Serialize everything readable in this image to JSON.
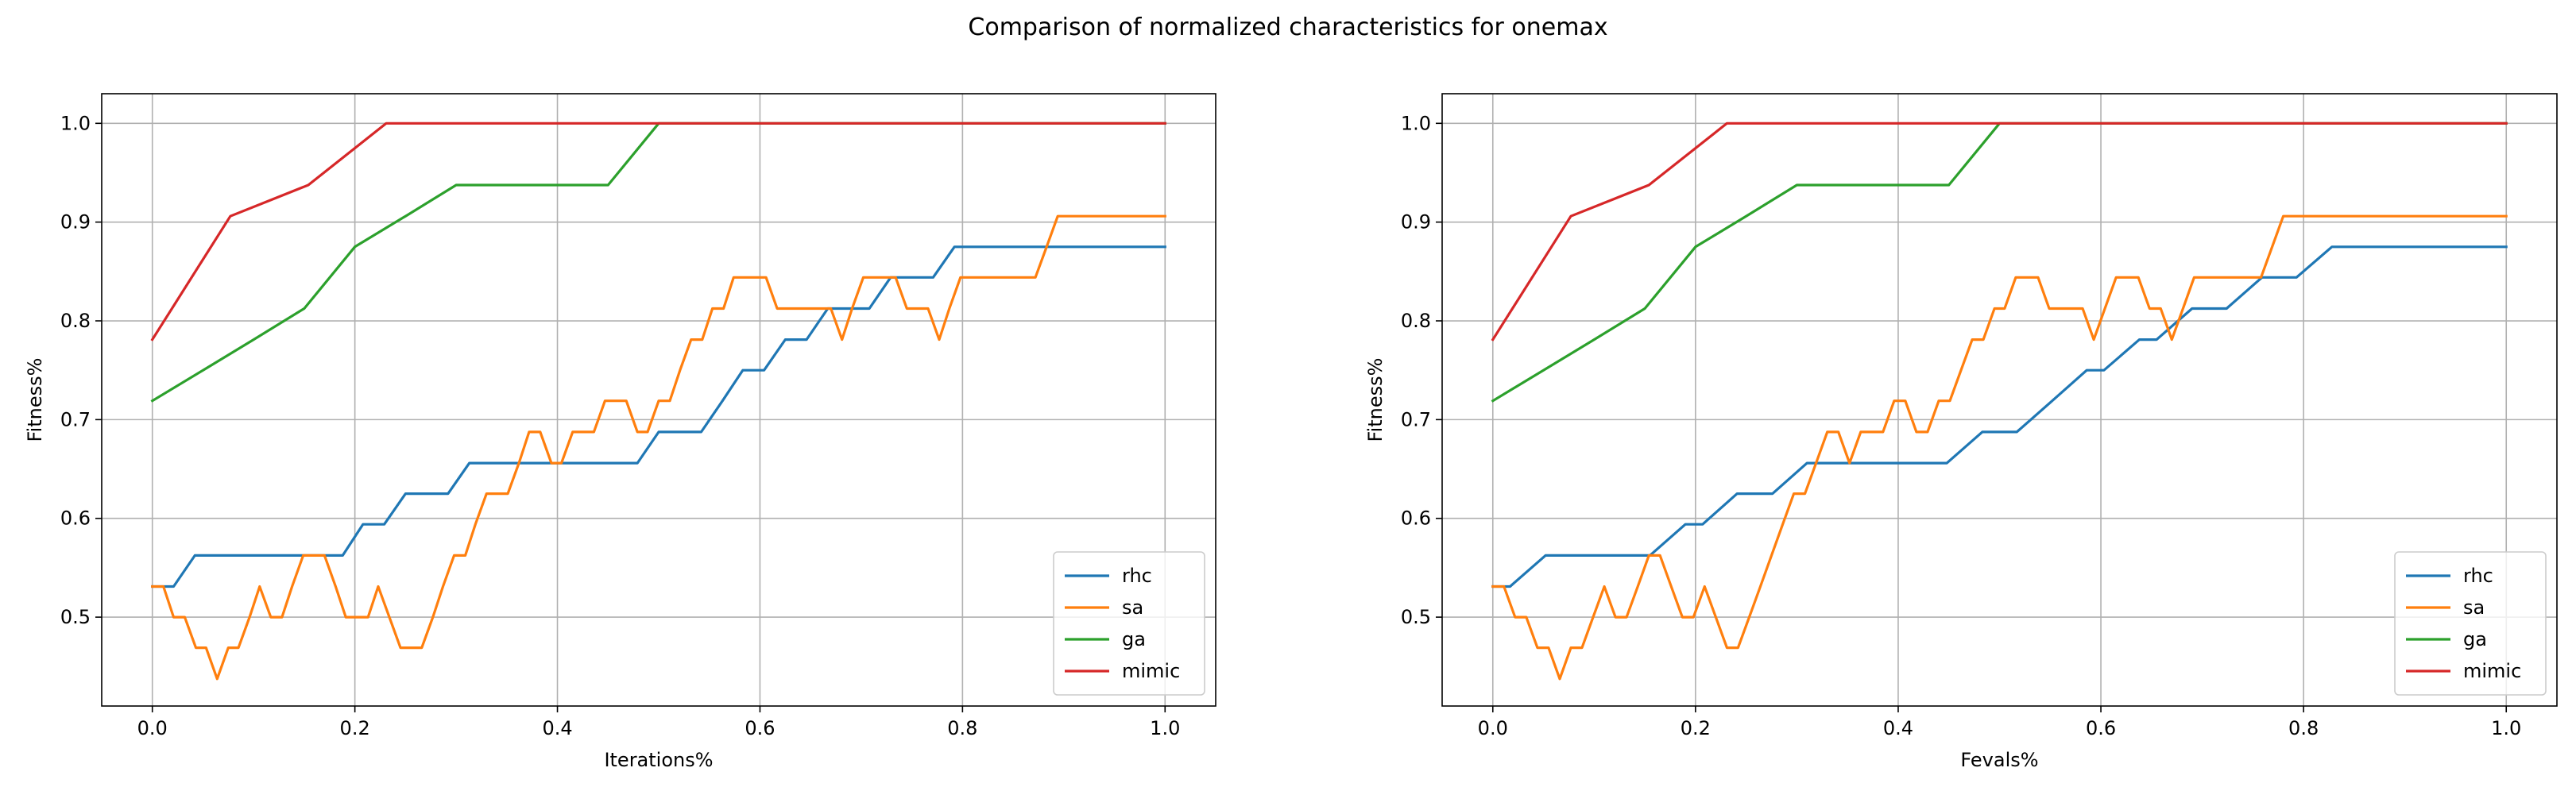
{
  "figure": {
    "suptitle": "Comparison of normalized characteristics for onemax"
  },
  "chart_data": [
    {
      "type": "line",
      "title": "",
      "xlabel": "Iterations%",
      "ylabel": "Fitness%",
      "xlim": [
        -0.05,
        1.05
      ],
      "ylim": [
        0.41,
        1.03
      ],
      "xticks": [
        0.0,
        0.2,
        0.4,
        0.6,
        0.8,
        1.0
      ],
      "xtick_labels": [
        "0.0",
        "0.2",
        "0.4",
        "0.6",
        "0.8",
        "1.0"
      ],
      "yticks": [
        0.5,
        0.6,
        0.7,
        0.8,
        0.9,
        1.0
      ],
      "ytick_labels": [
        "0.5",
        "0.6",
        "0.7",
        "0.8",
        "0.9",
        "1.0"
      ],
      "grid": true,
      "legend": "lower-right",
      "series": [
        {
          "name": "rhc",
          "color": "#1f77b4",
          "x": [
            0.0,
            0.021,
            0.042,
            0.063,
            0.083,
            0.104,
            0.125,
            0.146,
            0.167,
            0.188,
            0.208,
            0.229,
            0.25,
            0.271,
            0.292,
            0.313,
            0.333,
            0.354,
            0.375,
            0.396,
            0.417,
            0.438,
            0.458,
            0.479,
            0.5,
            0.521,
            0.542,
            0.563,
            0.583,
            0.604,
            0.625,
            0.646,
            0.667,
            0.688,
            0.708,
            0.729,
            0.75,
            0.771,
            0.792,
            0.813,
            0.833,
            0.854,
            0.875,
            0.896,
            0.917,
            0.938,
            0.958,
            0.979,
            1.0
          ],
          "y": [
            0.531,
            0.531,
            0.5625,
            0.5625,
            0.5625,
            0.5625,
            0.5625,
            0.5625,
            0.5625,
            0.5625,
            0.594,
            0.594,
            0.625,
            0.625,
            0.625,
            0.656,
            0.656,
            0.656,
            0.656,
            0.656,
            0.656,
            0.656,
            0.656,
            0.656,
            0.6875,
            0.6875,
            0.6875,
            0.719,
            0.75,
            0.75,
            0.781,
            0.781,
            0.8125,
            0.8125,
            0.8125,
            0.844,
            0.844,
            0.844,
            0.875,
            0.875,
            0.875,
            0.875,
            0.875,
            0.875,
            0.875,
            0.875,
            0.875,
            0.875,
            0.875
          ]
        },
        {
          "name": "sa",
          "color": "#ff7f0e",
          "x": [
            0.0,
            0.011,
            0.021,
            0.032,
            0.043,
            0.053,
            0.064,
            0.075,
            0.085,
            0.096,
            0.106,
            0.117,
            0.128,
            0.138,
            0.149,
            0.16,
            0.17,
            0.181,
            0.191,
            0.202,
            0.213,
            0.223,
            0.234,
            0.245,
            0.255,
            0.266,
            0.277,
            0.287,
            0.298,
            0.309,
            0.319,
            0.33,
            0.34,
            0.351,
            0.362,
            0.372,
            0.383,
            0.394,
            0.404,
            0.415,
            0.426,
            0.436,
            0.447,
            0.457,
            0.468,
            0.479,
            0.489,
            0.5,
            0.511,
            0.521,
            0.532,
            0.543,
            0.553,
            0.564,
            0.574,
            0.585,
            0.596,
            0.606,
            0.617,
            0.628,
            0.638,
            0.649,
            0.66,
            0.67,
            0.681,
            0.691,
            0.702,
            0.713,
            0.723,
            0.734,
            0.745,
            0.755,
            0.766,
            0.777,
            0.787,
            0.798,
            0.809,
            0.819,
            0.83,
            0.84,
            0.851,
            0.862,
            0.872,
            0.883,
            0.894,
            0.904,
            0.915,
            0.926,
            0.936,
            0.947,
            0.957,
            0.968,
            0.979,
            0.989,
            1.0
          ],
          "y": [
            0.531,
            0.531,
            0.5,
            0.5,
            0.469,
            0.469,
            0.4375,
            0.469,
            0.469,
            0.5,
            0.531,
            0.5,
            0.5,
            0.531,
            0.5625,
            0.5625,
            0.5625,
            0.531,
            0.5,
            0.5,
            0.5,
            0.531,
            0.5,
            0.469,
            0.469,
            0.469,
            0.5,
            0.531,
            0.5625,
            0.5625,
            0.594,
            0.625,
            0.625,
            0.625,
            0.656,
            0.6875,
            0.6875,
            0.656,
            0.656,
            0.6875,
            0.6875,
            0.6875,
            0.719,
            0.719,
            0.719,
            0.6875,
            0.6875,
            0.719,
            0.719,
            0.75,
            0.781,
            0.781,
            0.8125,
            0.8125,
            0.844,
            0.844,
            0.844,
            0.844,
            0.8125,
            0.8125,
            0.8125,
            0.8125,
            0.8125,
            0.8125,
            0.781,
            0.8125,
            0.844,
            0.844,
            0.844,
            0.844,
            0.8125,
            0.8125,
            0.8125,
            0.781,
            0.8125,
            0.844,
            0.844,
            0.844,
            0.844,
            0.844,
            0.844,
            0.844,
            0.844,
            0.875,
            0.906,
            0.906,
            0.906,
            0.906,
            0.906,
            0.906,
            0.906,
            0.906,
            0.906,
            0.906,
            0.906
          ]
        },
        {
          "name": "ga",
          "color": "#2ca02c",
          "x": [
            0.0,
            0.05,
            0.1,
            0.15,
            0.2,
            0.25,
            0.3,
            0.35,
            0.4,
            0.45,
            0.5,
            0.55,
            0.6,
            0.65,
            0.7,
            0.75,
            0.8,
            0.85,
            0.9,
            0.95,
            1.0
          ],
          "y": [
            0.719,
            0.75,
            0.781,
            0.8125,
            0.875,
            0.906,
            0.9375,
            0.9375,
            0.9375,
            0.9375,
            1.0,
            1.0,
            1.0,
            1.0,
            1.0,
            1.0,
            1.0,
            1.0,
            1.0,
            1.0,
            1.0
          ]
        },
        {
          "name": "mimic",
          "color": "#d62728",
          "x": [
            0.0,
            0.077,
            0.154,
            0.231,
            0.308,
            0.385,
            0.462,
            0.538,
            0.615,
            0.692,
            0.769,
            0.846,
            0.923,
            1.0
          ],
          "y": [
            0.781,
            0.906,
            0.9375,
            1.0,
            1.0,
            1.0,
            1.0,
            1.0,
            1.0,
            1.0,
            1.0,
            1.0,
            1.0,
            1.0
          ]
        }
      ]
    },
    {
      "type": "line",
      "title": "",
      "xlabel": "Fevals%",
      "ylabel": "Fitness%",
      "xlim": [
        -0.05,
        1.05
      ],
      "ylim": [
        0.41,
        1.03
      ],
      "xticks": [
        0.0,
        0.2,
        0.4,
        0.6,
        0.8,
        1.0
      ],
      "xtick_labels": [
        "0.0",
        "0.2",
        "0.4",
        "0.6",
        "0.8",
        "1.0"
      ],
      "yticks": [
        0.5,
        0.6,
        0.7,
        0.8,
        0.9,
        1.0
      ],
      "ytick_labels": [
        "0.5",
        "0.6",
        "0.7",
        "0.8",
        "0.9",
        "1.0"
      ],
      "grid": true,
      "legend": "lower-right",
      "series": [
        {
          "name": "rhc",
          "color": "#1f77b4",
          "x": [
            0.0,
            0.017,
            0.052,
            0.086,
            0.121,
            0.155,
            0.19,
            0.207,
            0.241,
            0.276,
            0.31,
            0.345,
            0.379,
            0.414,
            0.448,
            0.483,
            0.517,
            0.552,
            0.586,
            0.603,
            0.638,
            0.655,
            0.69,
            0.724,
            0.759,
            0.793,
            0.828,
            0.862,
            0.897,
            0.931,
            0.966,
            1.0
          ],
          "y": [
            0.531,
            0.531,
            0.5625,
            0.5625,
            0.5625,
            0.5625,
            0.594,
            0.594,
            0.625,
            0.625,
            0.656,
            0.656,
            0.656,
            0.656,
            0.656,
            0.6875,
            0.6875,
            0.719,
            0.75,
            0.75,
            0.781,
            0.781,
            0.8125,
            0.8125,
            0.844,
            0.844,
            0.875,
            0.875,
            0.875,
            0.875,
            0.875,
            0.875
          ]
        },
        {
          "name": "sa",
          "color": "#ff7f0e",
          "x": [
            0.0,
            0.011,
            0.022,
            0.033,
            0.044,
            0.055,
            0.066,
            0.077,
            0.088,
            0.099,
            0.11,
            0.121,
            0.132,
            0.143,
            0.154,
            0.165,
            0.176,
            0.187,
            0.198,
            0.209,
            0.22,
            0.231,
            0.242,
            0.253,
            0.264,
            0.275,
            0.286,
            0.297,
            0.308,
            0.319,
            0.33,
            0.341,
            0.352,
            0.363,
            0.374,
            0.385,
            0.396,
            0.407,
            0.418,
            0.429,
            0.44,
            0.451,
            0.462,
            0.473,
            0.484,
            0.495,
            0.505,
            0.516,
            0.527,
            0.538,
            0.549,
            0.56,
            0.571,
            0.582,
            0.593,
            0.604,
            0.615,
            0.626,
            0.637,
            0.648,
            0.659,
            0.67,
            0.681,
            0.692,
            0.703,
            0.714,
            0.725,
            0.736,
            0.747,
            0.758,
            0.769,
            0.78,
            0.791,
            0.802,
            0.813,
            0.824,
            0.835,
            0.846,
            0.857,
            0.868,
            0.879,
            0.89,
            0.901,
            0.912,
            0.923,
            0.934,
            0.945,
            0.956,
            0.967,
            0.978,
            0.989,
            1.0
          ],
          "y": [
            0.531,
            0.531,
            0.5,
            0.5,
            0.469,
            0.469,
            0.4375,
            0.469,
            0.469,
            0.5,
            0.531,
            0.5,
            0.5,
            0.531,
            0.5625,
            0.5625,
            0.531,
            0.5,
            0.5,
            0.531,
            0.5,
            0.469,
            0.469,
            0.5,
            0.531,
            0.5625,
            0.594,
            0.625,
            0.625,
            0.656,
            0.6875,
            0.6875,
            0.656,
            0.6875,
            0.6875,
            0.6875,
            0.719,
            0.719,
            0.6875,
            0.6875,
            0.719,
            0.719,
            0.75,
            0.781,
            0.781,
            0.8125,
            0.8125,
            0.844,
            0.844,
            0.844,
            0.8125,
            0.8125,
            0.8125,
            0.8125,
            0.781,
            0.8125,
            0.844,
            0.844,
            0.844,
            0.8125,
            0.8125,
            0.781,
            0.8125,
            0.844,
            0.844,
            0.844,
            0.844,
            0.844,
            0.844,
            0.844,
            0.875,
            0.906,
            0.906,
            0.906,
            0.906,
            0.906,
            0.906,
            0.906,
            0.906,
            0.906,
            0.906,
            0.906,
            0.906,
            0.906,
            0.906,
            0.906,
            0.906,
            0.906,
            0.906,
            0.906,
            0.906,
            0.906
          ]
        },
        {
          "name": "ga",
          "color": "#2ca02c",
          "x": [
            0.0,
            0.05,
            0.1,
            0.15,
            0.2,
            0.25,
            0.3,
            0.35,
            0.4,
            0.45,
            0.5,
            0.55,
            0.6,
            0.65,
            0.7,
            0.75,
            0.8,
            0.85,
            0.9,
            0.95,
            1.0
          ],
          "y": [
            0.719,
            0.75,
            0.781,
            0.8125,
            0.875,
            0.906,
            0.9375,
            0.9375,
            0.9375,
            0.9375,
            1.0,
            1.0,
            1.0,
            1.0,
            1.0,
            1.0,
            1.0,
            1.0,
            1.0,
            1.0,
            1.0
          ]
        },
        {
          "name": "mimic",
          "color": "#d62728",
          "x": [
            0.0,
            0.077,
            0.154,
            0.231,
            0.308,
            0.385,
            0.462,
            0.538,
            0.615,
            0.692,
            0.769,
            0.846,
            0.923,
            1.0
          ],
          "y": [
            0.781,
            0.906,
            0.9375,
            1.0,
            1.0,
            1.0,
            1.0,
            1.0,
            1.0,
            1.0,
            1.0,
            1.0,
            1.0,
            1.0
          ]
        }
      ]
    }
  ]
}
